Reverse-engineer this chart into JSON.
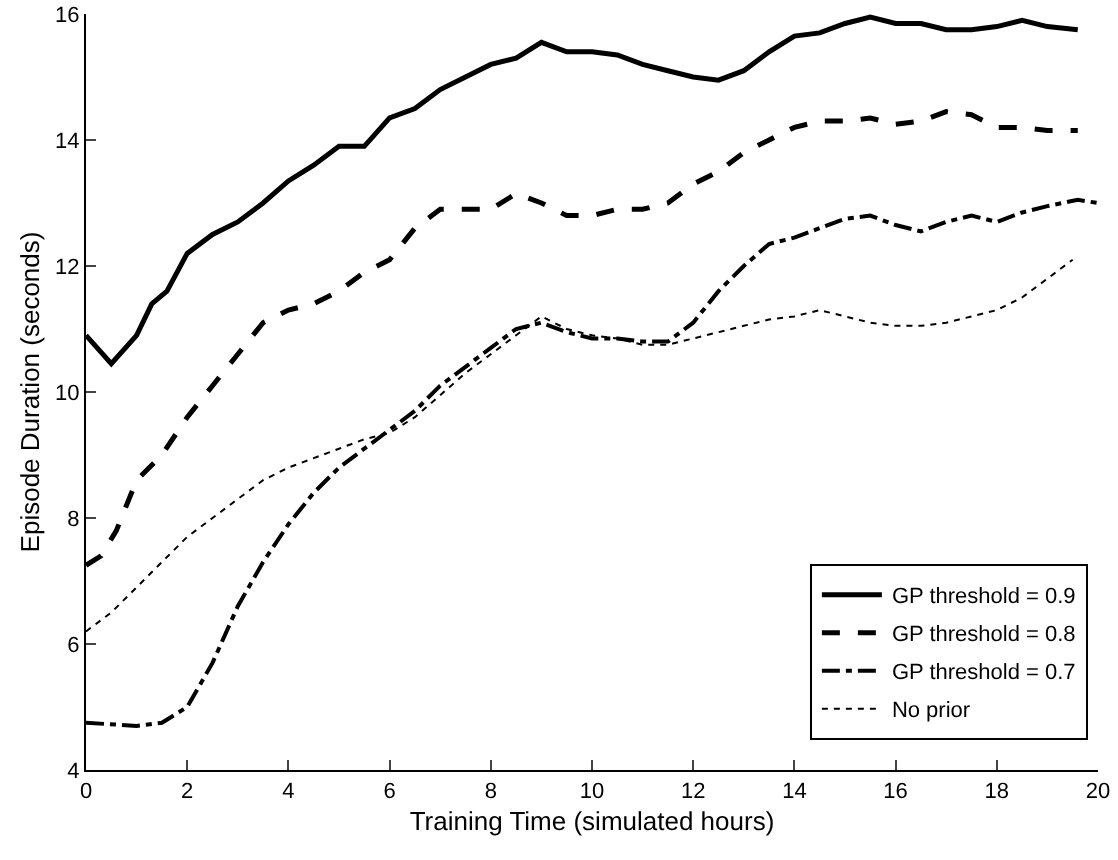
{
  "chart_data": {
    "type": "line",
    "xlabel": "Training Time (simulated hours)",
    "ylabel": "Episode Duration (seconds)",
    "xlim": [
      0,
      20
    ],
    "ylim": [
      4,
      16
    ],
    "xticks": [
      0,
      2,
      4,
      6,
      8,
      10,
      12,
      14,
      16,
      18,
      20
    ],
    "yticks": [
      4,
      6,
      8,
      10,
      12,
      14,
      16
    ],
    "grid": false,
    "legend": "bottom right",
    "marker": "none",
    "series": [
      {
        "name": "GP threshold = 0.9",
        "color": "#000000",
        "line_style": "solid",
        "x": [
          0,
          0.5,
          1,
          1.3,
          1.6,
          2,
          2.5,
          3,
          3.5,
          4,
          4.5,
          5,
          5.5,
          6,
          6.5,
          7,
          7.5,
          8,
          8.5,
          9,
          9.5,
          10,
          10.5,
          11,
          11.5,
          12,
          12.5,
          13,
          13.5,
          14,
          14.5,
          15,
          15.5,
          16,
          16.5,
          17,
          17.5,
          18,
          18.5,
          19,
          19.6
        ],
        "values": [
          10.9,
          10.45,
          10.9,
          11.4,
          11.6,
          12.2,
          12.5,
          12.7,
          13.0,
          13.35,
          13.6,
          13.9,
          13.9,
          14.35,
          14.5,
          14.8,
          15.0,
          15.2,
          15.3,
          15.55,
          15.4,
          15.4,
          15.35,
          15.2,
          15.1,
          15.0,
          14.95,
          15.1,
          15.4,
          15.65,
          15.7,
          15.85,
          15.95,
          15.85,
          15.85,
          15.75,
          15.75,
          15.8,
          15.9,
          15.8,
          15.75
        ]
      },
      {
        "name": "GP threshold = 0.8",
        "color": "#000000",
        "line_style": "dashed",
        "x": [
          0,
          0.3,
          0.6,
          1,
          1.5,
          2,
          2.5,
          3,
          3.5,
          4,
          4.5,
          5,
          5.5,
          6,
          6.5,
          7,
          7.5,
          8,
          8.5,
          9,
          9.5,
          10,
          10.5,
          11,
          11.5,
          12,
          12.5,
          13,
          13.5,
          14,
          14.5,
          15,
          15.5,
          16,
          16.5,
          17,
          17.5,
          18,
          18.5,
          19,
          19.6
        ],
        "values": [
          7.25,
          7.4,
          7.8,
          8.6,
          9.0,
          9.6,
          10.1,
          10.6,
          11.1,
          11.3,
          11.4,
          11.6,
          11.9,
          12.1,
          12.6,
          12.9,
          12.9,
          12.9,
          13.15,
          13.0,
          12.8,
          12.8,
          12.9,
          12.9,
          13.0,
          13.3,
          13.5,
          13.8,
          14.0,
          14.2,
          14.3,
          14.3,
          14.35,
          14.25,
          14.3,
          14.45,
          14.4,
          14.2,
          14.2,
          14.15,
          14.15
        ]
      },
      {
        "name": "GP threshold = 0.7",
        "color": "#000000",
        "line_style": "dashdot",
        "x": [
          0,
          1,
          1.5,
          2,
          2.5,
          3,
          3.5,
          4,
          4.5,
          5,
          5.5,
          6,
          6.5,
          7,
          7.5,
          8,
          8.5,
          9,
          9.5,
          10,
          10.5,
          11,
          11.5,
          12,
          12.5,
          13,
          13.5,
          14,
          14.5,
          15,
          15.5,
          16,
          16.5,
          17,
          17.5,
          18,
          18.5,
          19,
          19.6,
          20
        ],
        "values": [
          4.75,
          4.7,
          4.75,
          5.0,
          5.7,
          6.6,
          7.3,
          7.9,
          8.4,
          8.8,
          9.1,
          9.4,
          9.7,
          10.1,
          10.4,
          10.7,
          11.0,
          11.1,
          10.95,
          10.85,
          10.85,
          10.8,
          10.8,
          11.1,
          11.6,
          12.0,
          12.35,
          12.45,
          12.6,
          12.75,
          12.8,
          12.65,
          12.55,
          12.7,
          12.8,
          12.7,
          12.85,
          12.95,
          13.05,
          13.0
        ]
      },
      {
        "name": "No prior",
        "color": "#000000",
        "line_style": "dotted",
        "x": [
          0,
          0.5,
          1,
          1.5,
          2,
          2.5,
          3,
          3.5,
          4,
          4.5,
          5,
          5.5,
          6,
          6.5,
          7,
          7.5,
          8,
          8.5,
          9,
          9.5,
          10,
          10.5,
          11,
          11.5,
          12,
          12.5,
          13,
          13.5,
          14,
          14.5,
          15,
          15.5,
          16,
          16.5,
          17,
          17.5,
          18,
          18.5,
          19,
          19.5
        ],
        "values": [
          6.2,
          6.5,
          6.9,
          7.3,
          7.7,
          8.0,
          8.3,
          8.6,
          8.8,
          8.95,
          9.1,
          9.25,
          9.35,
          9.6,
          9.95,
          10.3,
          10.6,
          10.9,
          11.2,
          11.0,
          10.9,
          10.85,
          10.75,
          10.75,
          10.85,
          10.95,
          11.05,
          11.15,
          11.2,
          11.3,
          11.2,
          11.1,
          11.05,
          11.05,
          11.1,
          11.2,
          11.3,
          11.5,
          11.8,
          12.1
        ]
      }
    ]
  }
}
